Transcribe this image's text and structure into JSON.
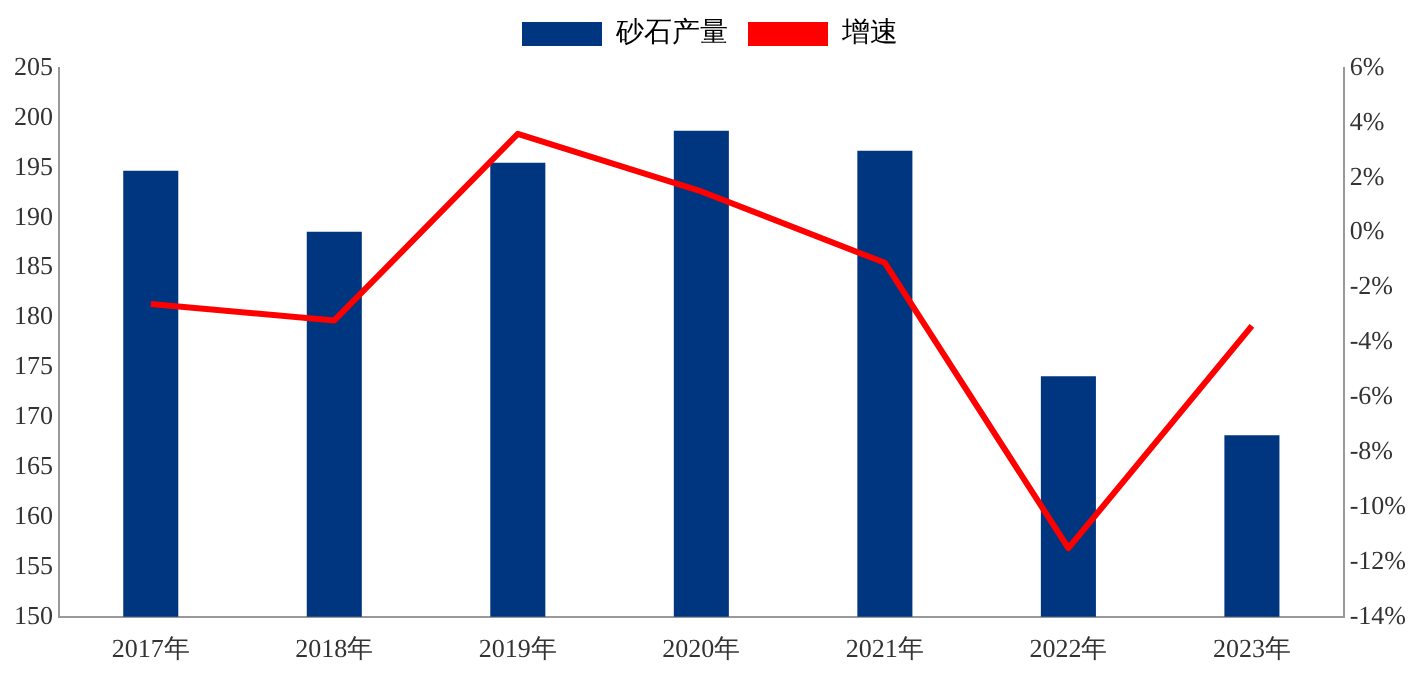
{
  "chart_data": {
    "type": "bar",
    "categories": [
      "2017年",
      "2018年",
      "2019年",
      "2020年",
      "2021年",
      "2022年",
      "2023年"
    ],
    "series": [
      {
        "name": "砂石产量",
        "color": "#003580",
        "values": [
          194.7,
          188.6,
          195.5,
          198.7,
          196.7,
          174.1,
          168.2
        ]
      },
      {
        "name": "增速",
        "type": "line",
        "axis": "y2",
        "color": "#ff0000",
        "values": [
          -2.6,
          -3.2,
          3.6,
          1.5,
          -1.1,
          -11.5,
          -3.4
        ]
      }
    ],
    "ylim": [
      150,
      205
    ],
    "yticks": [
      150,
      155,
      160,
      165,
      170,
      175,
      180,
      185,
      190,
      195,
      200,
      205
    ],
    "y2lim": [
      -14,
      6
    ],
    "y2ticks": [
      {
        "value": -14,
        "label": "-14%"
      },
      {
        "value": -12,
        "label": "-12%"
      },
      {
        "value": -10,
        "label": "-10%"
      },
      {
        "value": -8,
        "label": "-8%"
      },
      {
        "value": -6,
        "label": "-6%"
      },
      {
        "value": -4,
        "label": "-4%"
      },
      {
        "value": -2,
        "label": "-2%"
      },
      {
        "value": 0,
        "label": "0%"
      },
      {
        "value": 2,
        "label": "2%"
      },
      {
        "value": 4,
        "label": "4%"
      },
      {
        "value": 6,
        "label": "6%"
      }
    ],
    "legend": "top",
    "grid": false,
    "marker": "none",
    "line_style": "solid"
  }
}
